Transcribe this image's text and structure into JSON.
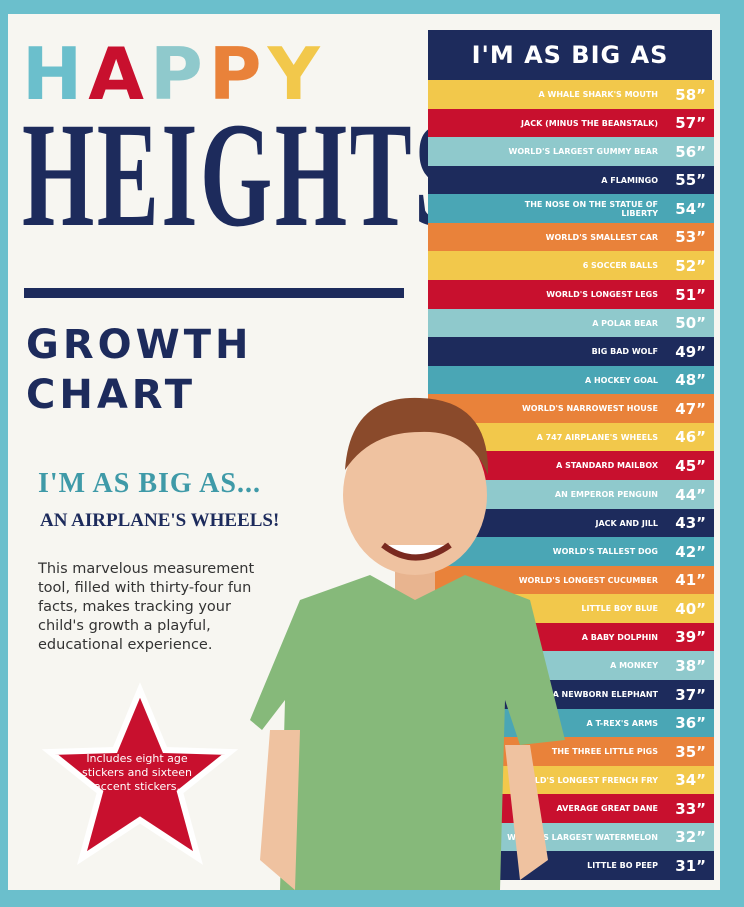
{
  "header": {
    "happy_letters": [
      "H",
      "A",
      "P",
      "P",
      "Y"
    ],
    "heights": "HEIGHTS",
    "growth": "GROWTH",
    "chart": "CHART"
  },
  "tagline": {
    "line1": "I'M AS BIG AS...",
    "line2": "AN AIRPLANE'S WHEELS!"
  },
  "description": "This marvelous measurement tool, filled with thirty-four fun facts, makes tracking your child's growth a playful, educational experience.",
  "star": "Includes eight age stickers and sixteen accent stickers.",
  "chart_title": "I'M AS BIG AS",
  "rows": [
    {
      "label": "A WHALE SHARK'S MOUTH",
      "height": "58”"
    },
    {
      "label": "JACK (MINUS THE BEANSTALK)",
      "height": "57”"
    },
    {
      "label": "WORLD'S LARGEST GUMMY BEAR",
      "height": "56”"
    },
    {
      "label": "A FLAMINGO",
      "height": "55”"
    },
    {
      "label": "THE NOSE ON THE STATUE OF LIBERTY",
      "height": "54”"
    },
    {
      "label": "WORLD'S SMALLEST CAR",
      "height": "53”"
    },
    {
      "label": "6 SOCCER BALLS",
      "height": "52”"
    },
    {
      "label": "WORLD'S LONGEST LEGS",
      "height": "51”"
    },
    {
      "label": "A POLAR BEAR",
      "height": "50”"
    },
    {
      "label": "BIG BAD WOLF",
      "height": "49”"
    },
    {
      "label": "A HOCKEY GOAL",
      "height": "48”"
    },
    {
      "label": "WORLD'S NARROWEST HOUSE",
      "height": "47”"
    },
    {
      "label": "A 747 AIRPLANE'S WHEELS",
      "height": "46”"
    },
    {
      "label": "A STANDARD MAILBOX",
      "height": "45”"
    },
    {
      "label": "AN EMPEROR PENGUIN",
      "height": "44”"
    },
    {
      "label": "JACK AND JILL",
      "height": "43”"
    },
    {
      "label": "WORLD'S TALLEST DOG",
      "height": "42”"
    },
    {
      "label": "WORLD'S LONGEST CUCUMBER",
      "height": "41”"
    },
    {
      "label": "LITTLE BOY BLUE",
      "height": "40”"
    },
    {
      "label": "A BABY DOLPHIN",
      "height": "39”"
    },
    {
      "label": "A MONKEY",
      "height": "38”"
    },
    {
      "label": "A NEWBORN ELEPHANT",
      "height": "37”"
    },
    {
      "label": "A T-REX'S ARMS",
      "height": "36”"
    },
    {
      "label": "THE THREE LITTLE PIGS",
      "height": "35”"
    },
    {
      "label": "WORLD'S LONGEST FRENCH FRY",
      "height": "34”"
    },
    {
      "label": "AVERAGE GREAT DANE",
      "height": "33”"
    },
    {
      "label": "WORLD'S LARGEST WATERMELON",
      "height": "32”"
    },
    {
      "label": "LITTLE BO PEEP",
      "height": "31”"
    }
  ]
}
